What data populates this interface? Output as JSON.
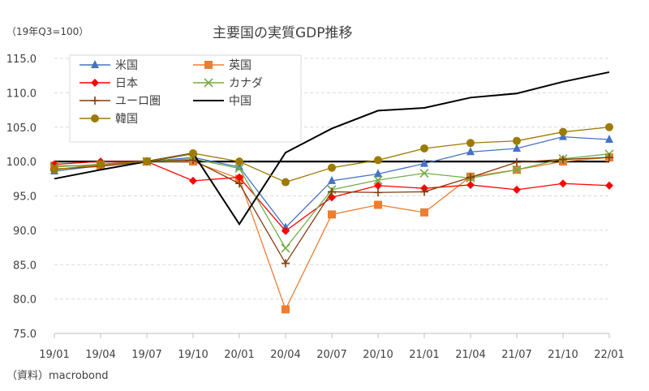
{
  "title": "主要国の実質GDP推移",
  "unit_note": "（19年Q3=100）",
  "source_note": "（資料）macrobond",
  "colors": {
    "grid": "#d9d9d9",
    "axis": "#bfbfbf",
    "baseline": "#000000"
  },
  "chart_data": {
    "type": "line",
    "title": "主要国の実質GDP推移",
    "xlabel": "",
    "ylabel": "",
    "ylim": [
      75,
      115
    ],
    "yticks": [
      "75.0",
      "80.0",
      "85.0",
      "90.0",
      "95.0",
      "100.0",
      "105.0",
      "110.0",
      "115.0"
    ],
    "grid": "horizontal dashed",
    "legend_position": "top-left",
    "baseline": 100,
    "categories": [
      "19/01",
      "19/04",
      "19/07",
      "19/10",
      "20/01",
      "20/04",
      "20/07",
      "20/10",
      "21/01",
      "21/04",
      "21/07",
      "21/10",
      "22/01"
    ],
    "series": [
      {
        "name": "米国",
        "color": "#4472c4",
        "marker": "triangle",
        "values": [
          98.6,
          99.4,
          100.0,
          100.6,
          99.2,
          90.4,
          97.2,
          98.2,
          99.7,
          101.4,
          101.9,
          103.6,
          103.2
        ]
      },
      {
        "name": "英国",
        "color": "#ed7d31",
        "marker": "square",
        "values": [
          99.4,
          99.4,
          100.0,
          100.0,
          97.5,
          78.5,
          92.3,
          93.7,
          92.6,
          97.8,
          98.8,
          100.0,
          100.6
        ]
      },
      {
        "name": "日本",
        "color": "#ff0000",
        "marker": "diamond",
        "values": [
          99.6,
          100.0,
          100.0,
          97.2,
          97.7,
          89.9,
          94.8,
          96.5,
          96.1,
          96.6,
          95.9,
          96.8,
          96.5
        ]
      },
      {
        "name": "カナダ",
        "color": "#70ad47",
        "marker": "x",
        "values": [
          99.2,
          99.6,
          100.0,
          100.4,
          99.0,
          87.4,
          95.9,
          97.3,
          98.3,
          97.6,
          98.8,
          100.4,
          101.1
        ]
      },
      {
        "name": "ユーロ圏",
        "color": "#843c0c",
        "marker": "plus",
        "values": [
          98.9,
          99.3,
          100.0,
          100.2,
          96.8,
          85.2,
          95.6,
          95.5,
          95.6,
          97.7,
          99.9,
          100.3,
          100.6
        ]
      },
      {
        "name": "中国",
        "color": "#000000",
        "marker": "none",
        "values": [
          97.5,
          98.8,
          100.0,
          101.2,
          90.9,
          101.3,
          104.8,
          107.4,
          107.8,
          109.3,
          109.9,
          111.6,
          113.0
        ]
      },
      {
        "name": "韓国",
        "color": "#9c7b00",
        "marker": "circle",
        "values": [
          98.8,
          99.6,
          100.0,
          101.2,
          100.0,
          97.0,
          99.1,
          100.2,
          101.9,
          102.7,
          103.0,
          104.3,
          105.0
        ]
      }
    ]
  }
}
